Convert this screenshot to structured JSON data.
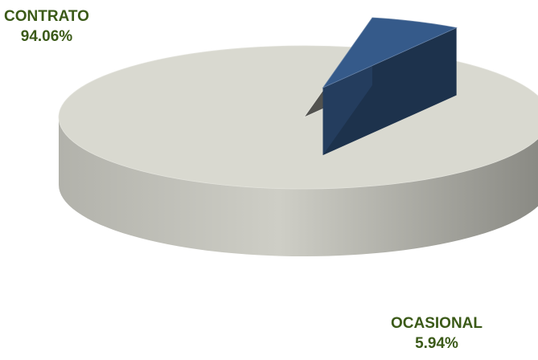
{
  "chart_data": {
    "type": "pie",
    "style": "3d-exploded",
    "title": "",
    "slices": [
      {
        "name": "CONTRATO",
        "value": 94.06,
        "value_label": "94.06%",
        "color": "#d9d9d0",
        "exploded": false
      },
      {
        "name": "OCASIONAL",
        "value": 5.94,
        "value_label": "5.94%",
        "color": "#355a8a",
        "exploded": true
      }
    ],
    "label_color": "#3b5a18",
    "legend": "none"
  }
}
